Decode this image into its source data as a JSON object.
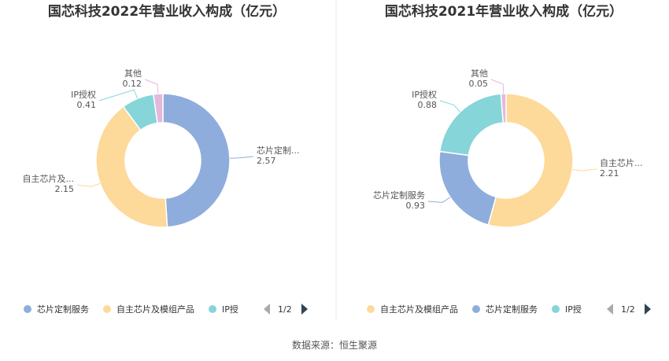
{
  "source_text": "数据来源：恒生聚源",
  "chart_data": [
    {
      "type": "pie",
      "title": "国芯科技2022年营业收入构成（亿元）",
      "slices": [
        {
          "name": "芯片定制服务",
          "label": "芯片定制...",
          "value": 2.57,
          "value_text": "2.57",
          "color": "#8eaddc"
        },
        {
          "name": "自主芯片及模组产品",
          "label": "自主芯片及...",
          "value": 2.15,
          "value_text": "2.15",
          "color": "#fdd99a"
        },
        {
          "name": "IP授权",
          "label": "IP授权",
          "value": 0.41,
          "value_text": "0.41",
          "color": "#86d5d8"
        },
        {
          "name": "其他",
          "label": "其他",
          "value": 0.12,
          "value_text": "0.12",
          "color": "#e3b8dc"
        }
      ],
      "legend": {
        "items": [
          {
            "label": "芯片定制服务",
            "color": "#8eaddc"
          },
          {
            "label": "自主芯片及模组产品",
            "color": "#fdd99a"
          },
          {
            "label": "IP授",
            "color": "#86d5d8"
          }
        ],
        "page": "1/2"
      }
    },
    {
      "type": "pie",
      "title": "国芯科技2021年营业收入构成（亿元）",
      "slices": [
        {
          "name": "自主芯片及模组产品",
          "label": "自主芯片...",
          "value": 2.21,
          "value_text": "2.21",
          "color": "#fdd99a"
        },
        {
          "name": "芯片定制服务",
          "label": "芯片定制服务",
          "value": 0.93,
          "value_text": "0.93",
          "color": "#8eaddc"
        },
        {
          "name": "IP授权",
          "label": "IP授权",
          "value": 0.88,
          "value_text": "0.88",
          "color": "#86d5d8"
        },
        {
          "name": "其他",
          "label": "其他",
          "value": 0.05,
          "value_text": "0.05",
          "color": "#e3b8dc"
        }
      ],
      "legend": {
        "items": [
          {
            "label": "自主芯片及模组产品",
            "color": "#fdd99a"
          },
          {
            "label": "芯片定制服务",
            "color": "#8eaddc"
          },
          {
            "label": "IP授",
            "color": "#86d5d8"
          }
        ],
        "page": "1/2"
      }
    }
  ]
}
